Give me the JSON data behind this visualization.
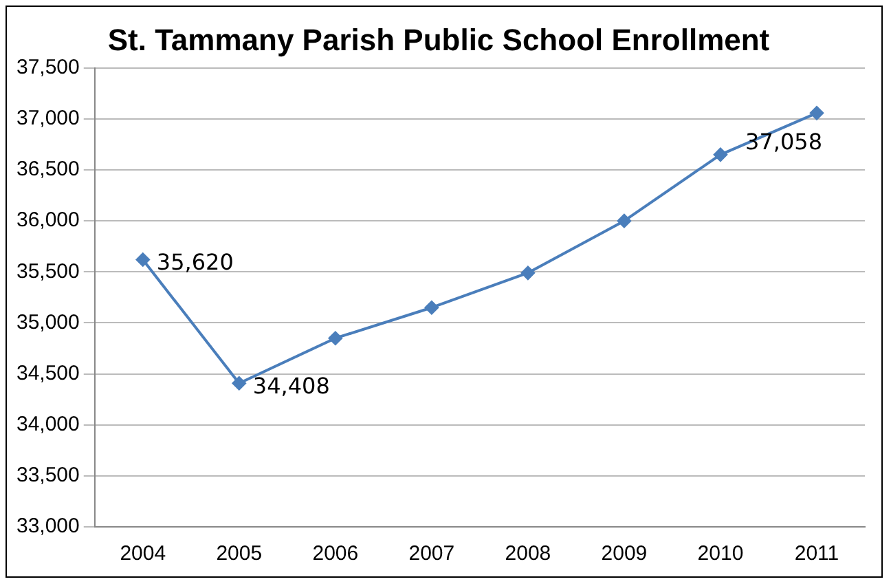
{
  "chart_data": {
    "type": "line",
    "title": "St. Tammany Parish Public School Enrollment",
    "categories": [
      "2004",
      "2005",
      "2006",
      "2007",
      "2008",
      "2009",
      "2010",
      "2011"
    ],
    "series": [
      {
        "color": "#4a7ebb",
        "values": [
          35620,
          34408,
          34850,
          35150,
          35490,
          36000,
          36650,
          37058
        ],
        "value_labels": [
          "35,620",
          "34,408",
          null,
          null,
          null,
          null,
          null,
          "37,058"
        ]
      }
    ],
    "ylim": [
      33000,
      37500
    ],
    "yticks": [
      {
        "value": 33000,
        "label": "33,000"
      },
      {
        "value": 33500,
        "label": "33,500"
      },
      {
        "value": 34000,
        "label": "34,000"
      },
      {
        "value": 34500,
        "label": "34,500"
      },
      {
        "value": 35000,
        "label": "35,000"
      },
      {
        "value": 35500,
        "label": "35,500"
      },
      {
        "value": 36000,
        "label": "36,000"
      },
      {
        "value": 36500,
        "label": "36,500"
      },
      {
        "value": 37000,
        "label": "37,000"
      },
      {
        "value": 37500,
        "label": "37,500"
      }
    ],
    "grid": "y",
    "legend": false,
    "marker": "diamond",
    "line_style": "solid"
  }
}
